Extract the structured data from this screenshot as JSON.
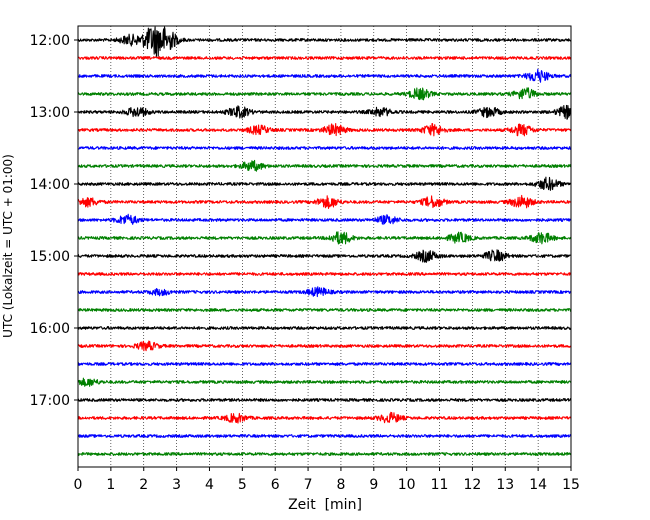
{
  "chart_data": {
    "type": "line",
    "subtype": "helicorder",
    "xlabel": "Zeit  [min]",
    "ylabel": "UTC (Lokalzeit = UTC + 01:00)",
    "xlim": [
      0,
      15
    ],
    "x_ticks": [
      0,
      1,
      2,
      3,
      4,
      5,
      6,
      7,
      8,
      9,
      10,
      11,
      12,
      13,
      14,
      15
    ],
    "grid": "vertical dotted lines at each minute",
    "y_ticks": [
      "12:00",
      "13:00",
      "14:00",
      "15:00",
      "16:00",
      "17:00"
    ],
    "traces_per_hour": 4,
    "trace_interval_minutes": 15,
    "trace_colors": [
      "#000000",
      "#ff0000",
      "#0000ff",
      "#008000"
    ],
    "traces": [
      {
        "start": "12:00",
        "bursts": [
          {
            "t": 1.6,
            "a": 0.35
          },
          {
            "t": 2.3,
            "a": 1.0
          },
          {
            "t": 2.7,
            "a": 0.75
          }
        ]
      },
      {
        "start": "12:15",
        "bursts": []
      },
      {
        "start": "12:30",
        "bursts": [
          {
            "t": 14.0,
            "a": 0.45
          }
        ]
      },
      {
        "start": "12:45",
        "bursts": [
          {
            "t": 10.4,
            "a": 0.4
          },
          {
            "t": 13.6,
            "a": 0.4
          }
        ]
      },
      {
        "start": "13:00",
        "bursts": [
          {
            "t": 1.8,
            "a": 0.35
          },
          {
            "t": 4.9,
            "a": 0.4
          },
          {
            "t": 9.2,
            "a": 0.3
          },
          {
            "t": 12.5,
            "a": 0.35
          },
          {
            "t": 14.9,
            "a": 0.45
          }
        ]
      },
      {
        "start": "13:15",
        "bursts": [
          {
            "t": 5.5,
            "a": 0.3
          },
          {
            "t": 7.8,
            "a": 0.4
          },
          {
            "t": 10.8,
            "a": 0.4
          },
          {
            "t": 13.5,
            "a": 0.4
          }
        ]
      },
      {
        "start": "13:30",
        "bursts": []
      },
      {
        "start": "13:45",
        "bursts": [
          {
            "t": 5.3,
            "a": 0.35
          }
        ]
      },
      {
        "start": "14:00",
        "bursts": [
          {
            "t": 14.3,
            "a": 0.45
          }
        ]
      },
      {
        "start": "14:15",
        "bursts": [
          {
            "t": 0.3,
            "a": 0.3
          },
          {
            "t": 7.6,
            "a": 0.4
          },
          {
            "t": 10.8,
            "a": 0.4
          },
          {
            "t": 13.5,
            "a": 0.45
          }
        ]
      },
      {
        "start": "14:30",
        "bursts": [
          {
            "t": 1.5,
            "a": 0.35
          },
          {
            "t": 9.4,
            "a": 0.3
          }
        ]
      },
      {
        "start": "14:45",
        "bursts": [
          {
            "t": 8.0,
            "a": 0.45
          },
          {
            "t": 11.6,
            "a": 0.35
          },
          {
            "t": 14.1,
            "a": 0.4
          }
        ]
      },
      {
        "start": "15:00",
        "bursts": [
          {
            "t": 10.6,
            "a": 0.4
          },
          {
            "t": 12.7,
            "a": 0.4
          }
        ]
      },
      {
        "start": "15:15",
        "bursts": []
      },
      {
        "start": "15:30",
        "bursts": [
          {
            "t": 2.5,
            "a": 0.2
          },
          {
            "t": 7.3,
            "a": 0.3
          }
        ]
      },
      {
        "start": "15:45",
        "bursts": []
      },
      {
        "start": "16:00",
        "bursts": []
      },
      {
        "start": "16:15",
        "bursts": [
          {
            "t": 2.1,
            "a": 0.3
          }
        ]
      },
      {
        "start": "16:30",
        "bursts": []
      },
      {
        "start": "16:45",
        "bursts": [
          {
            "t": 0.3,
            "a": 0.25
          }
        ]
      },
      {
        "start": "17:00",
        "bursts": []
      },
      {
        "start": "17:15",
        "bursts": [
          {
            "t": 4.8,
            "a": 0.3
          },
          {
            "t": 9.5,
            "a": 0.35
          }
        ]
      },
      {
        "start": "17:30",
        "bursts": []
      },
      {
        "start": "17:45",
        "bursts": []
      }
    ]
  }
}
